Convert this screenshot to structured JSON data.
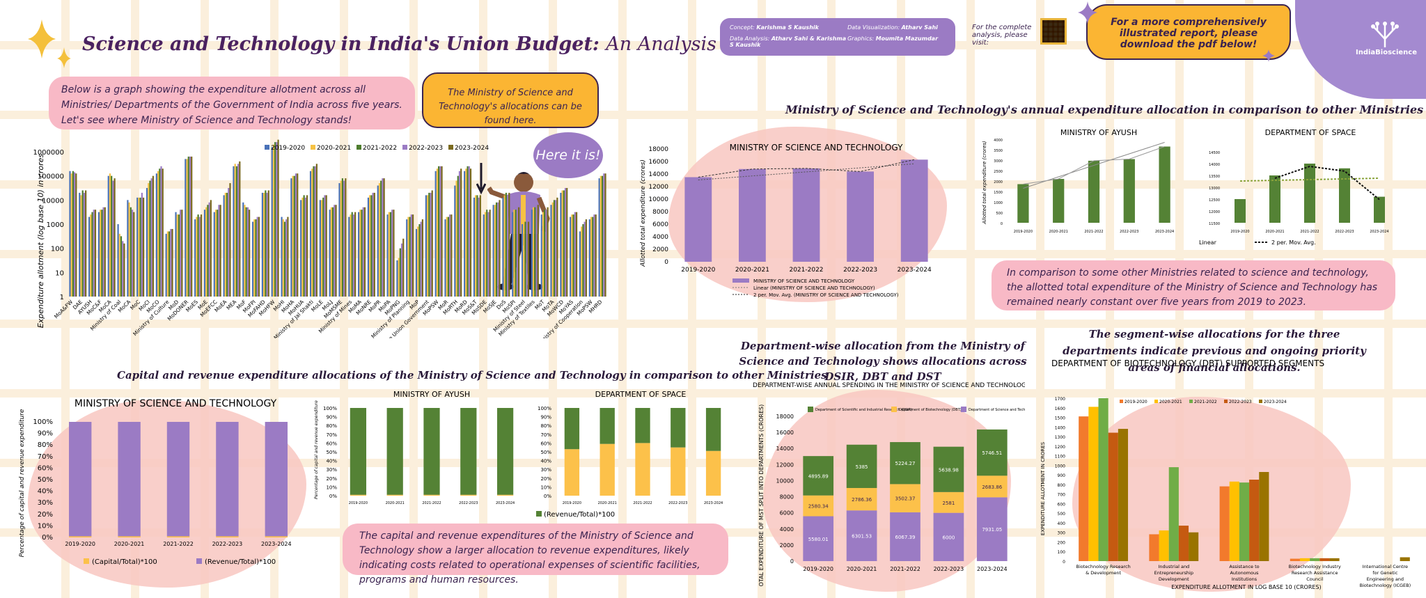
{
  "header": {
    "title_main": "Science and Technology in India's Union Budget:",
    "title_sub": "An Analysis across Five Years",
    "credits": [
      {
        "label": "Concept:",
        "value": "Karishma S Kaushik"
      },
      {
        "label": "Data Analysis:",
        "value": "Atharv Sahi & Karishma S Kaushik"
      },
      {
        "label": "Data Visualization:",
        "value": "Atharv Sahi"
      },
      {
        "label": "Graphics:",
        "value": "Moumita Mazumdar"
      }
    ],
    "analysis_text": "For the complete analysis, please visit:",
    "download_text": "For a more comprehensively illustrated report, please download the pdf below!",
    "logo_text": "IndiaBioscience"
  },
  "notes": {
    "intro": "Below is a graph showing the expenditure allotment across all Ministries/ Departments of the Government of India across five years. Let's see where Ministry of Science and Technology stands!",
    "mst_found": "The Ministry of Science and Technology's allocations can be found here.",
    "here": "Here it is!",
    "comparison": "In comparison to some other Ministries related to science and technology, the allotted total expenditure of the Ministry of Science and Technology has remained nearly constant over five years from 2019 to 2023.",
    "capital_revenue": "The capital and revenue expenditures of the Ministry of Science and Technology show a larger allocation to revenue expenditures, likely indicating costs related to operational expenses of scientific facilities, programs and human resources.",
    "dept_heading": "Department-wise allocation from the Ministry of Science and Technology shows allocations across DSIR, DBT and DST",
    "segment_heading": "The segment-wise allocations for the three departments indicate previous and ongoing priority areas of financial allocations."
  },
  "colors": {
    "y2019": "#4a72b8",
    "y2020": "#f6c244",
    "y2021": "#4e7d2e",
    "y2022": "#9b7bc4",
    "y2023": "#7a6a1e",
    "purple": "#9b7bc4",
    "green": "#548235",
    "yellow": "#fcc14a",
    "pink": "#f7b6c1",
    "orange": "#fbb033"
  },
  "chart_data": [
    {
      "type": "bar",
      "id": "all_ministries",
      "ylabel": "Expenditure allotment (log base 10) in crores",
      "yscale": "log",
      "ylim": [
        1,
        1000000
      ],
      "yticks": [
        "1",
        "10",
        "100",
        "1000",
        "10000",
        "100000",
        "1000000"
      ],
      "legend": [
        "2019-2020",
        "2020-2021",
        "2021-2022",
        "2022-2023",
        "2023-2024"
      ],
      "categories": [
        "MoA&FW",
        "DAE",
        "AYUSH",
        "MoC&F",
        "MoCA",
        "Ministry of Coal",
        "MoCA",
        "MoC",
        "MoCI",
        "MoCO",
        "Ministry of Culture",
        "MoD",
        "MoDONER",
        "MoES",
        "MoE",
        "MoEFCC",
        "MoEA",
        "MEA",
        "MoF",
        "MoFPI",
        "MoFAHD",
        "MoHFW",
        "MoHI",
        "MoHA",
        "MoHUA",
        "Ministry of Jal Shakti",
        "MoLE",
        "MoLJ",
        "MoMSME",
        "Ministry of Mines",
        "MoMA",
        "MoNRE",
        "MoPR",
        "MoPA",
        "MoPNG",
        "Ministry of Planning",
        "MoP",
        "The Union Government",
        "MoPSW",
        "MoR",
        "MoRTH",
        "MoRD",
        "MoS&T",
        "MoSDE",
        "MoSJE",
        "DoS",
        "MoSPI",
        "Ministry of Steel",
        "Ministry of Textiles",
        "MoT",
        "MoTA",
        "MoWCD",
        "MoYAS",
        "Ministry of Cooperation",
        "MoPSW",
        "MHRD"
      ],
      "series_log10": [
        [
          5.2,
          5.1,
          5.2,
          5.15,
          5.1
        ],
        [
          4.3,
          4.2,
          4.4,
          4.3,
          4.4
        ],
        [
          3.3,
          3.4,
          3.5,
          3.6,
          3.6
        ],
        [
          3.5,
          3.6,
          3.6,
          3.7,
          3.7
        ],
        [
          5.0,
          5.1,
          5.0,
          4.8,
          4.9
        ],
        [
          3.0,
          2.6,
          2.5,
          2.3,
          2.2
        ],
        [
          4.0,
          3.9,
          3.7,
          3.6,
          3.5
        ],
        [
          4.1,
          4.1,
          4.1,
          4.3,
          4.1
        ],
        [
          4.5,
          4.7,
          4.8,
          4.9,
          5.0
        ],
        [
          5.1,
          5.2,
          5.3,
          5.4,
          5.3
        ],
        [
          2.6,
          2.7,
          2.7,
          2.8,
          2.8
        ],
        [
          3.5,
          3.4,
          3.4,
          3.6,
          3.6
        ],
        [
          5.7,
          5.7,
          5.8,
          5.8,
          5.8
        ],
        [
          3.2,
          3.3,
          3.4,
          3.3,
          3.4
        ],
        [
          3.6,
          3.7,
          3.8,
          3.9,
          4.0
        ],
        [
          3.5,
          3.6,
          3.6,
          3.8,
          3.8
        ],
        [
          4.2,
          4.3,
          4.3,
          4.5,
          4.7
        ],
        [
          5.4,
          5.5,
          5.4,
          5.5,
          5.6
        ],
        [
          3.9,
          3.8,
          3.7,
          3.7,
          3.6
        ],
        [
          3.1,
          3.2,
          3.2,
          3.3,
          3.3
        ],
        [
          4.3,
          4.3,
          4.4,
          4.3,
          4.4
        ],
        [
          6.2,
          6.3,
          6.4,
          6.4,
          6.5
        ],
        [
          3.3,
          3.2,
          3.1,
          3.2,
          3.3
        ],
        [
          4.9,
          5.0,
          5.0,
          5.1,
          5.1
        ],
        [
          4.0,
          4.1,
          4.2,
          4.1,
          4.2
        ],
        [
          5.2,
          5.3,
          5.4,
          5.4,
          5.5
        ],
        [
          4.0,
          4.0,
          4.1,
          4.2,
          4.2
        ],
        [
          3.6,
          3.7,
          3.7,
          3.8,
          3.8
        ],
        [
          4.7,
          4.8,
          4.9,
          4.8,
          4.9
        ],
        [
          3.3,
          3.4,
          3.5,
          3.4,
          3.5
        ],
        [
          3.5,
          3.6,
          3.6,
          3.7,
          3.7
        ],
        [
          4.1,
          4.2,
          4.2,
          4.3,
          4.3
        ],
        [
          4.6,
          4.7,
          4.8,
          4.9,
          4.9
        ],
        [
          3.4,
          3.5,
          3.5,
          3.6,
          3.6
        ],
        [
          1.5,
          1.6,
          2.0,
          2.2,
          2.4
        ],
        [
          3.2,
          3.3,
          3.3,
          3.4,
          3.4
        ],
        [
          2.8,
          2.9,
          3.0,
          3.1,
          3.2
        ],
        [
          4.2,
          4.2,
          4.3,
          4.3,
          4.4
        ],
        [
          5.2,
          5.3,
          5.4,
          5.4,
          5.4
        ],
        [
          3.2,
          3.3,
          3.3,
          3.4,
          3.4
        ],
        [
          4.6,
          4.8,
          5.0,
          5.2,
          5.3
        ],
        [
          5.2,
          5.3,
          5.4,
          5.4,
          5.3
        ],
        [
          4.1,
          4.2,
          4.2,
          4.1,
          4.2
        ],
        [
          3.4,
          3.5,
          3.6,
          3.5,
          3.6
        ],
        [
          3.8,
          3.8,
          3.9,
          3.9,
          4.0
        ],
        [
          4.1,
          4.2,
          4.3,
          4.2,
          4.3
        ],
        [
          3.5,
          3.6,
          3.6,
          3.6,
          3.7
        ],
        [
          3.0,
          3.1,
          3.1,
          3.0,
          3.1
        ],
        [
          3.6,
          3.7,
          3.7,
          3.8,
          3.8
        ],
        [
          3.4,
          3.5,
          3.6,
          3.6,
          3.7
        ],
        [
          3.8,
          3.9,
          4.0,
          4.0,
          4.1
        ],
        [
          4.3,
          4.4,
          4.4,
          4.5,
          4.5
        ],
        [
          3.3,
          3.4,
          3.4,
          3.5,
          3.5
        ],
        [
          2.7,
          2.9,
          3.0,
          3.1,
          3.2
        ],
        [
          3.2,
          3.3,
          3.3,
          3.4,
          3.4
        ],
        [
          4.9,
          5.0,
          5.0,
          5.1,
          5.1
        ]
      ]
    },
    {
      "type": "bar",
      "id": "mst_total",
      "title": "MINISTRY OF SCIENCE AND TECHNOLOGY",
      "ylabel": "Allotted total expenditure (crores)",
      "categories": [
        "2019-2020",
        "2020-2021",
        "2021-2022",
        "2022-2023",
        "2023-2024"
      ],
      "values": [
        13500,
        14800,
        14900,
        14400,
        16300
      ],
      "ylim": [
        0,
        18000
      ],
      "yticks": [
        "0",
        "2000",
        "4000",
        "6000",
        "8000",
        "10000",
        "12000",
        "14000",
        "16000",
        "18000"
      ],
      "legend": [
        "MINISTRY OF SCIENCE AND TECHNOLOGY",
        "Linear (MINISTRY OF SCIENCE AND TECHNOLOGY)",
        "2 per. Mov. Avg. (MINISTRY OF SCIENCE AND TECHNOLOGY)"
      ]
    },
    {
      "type": "bar",
      "id": "ayush_total",
      "title": "MINISTRY OF AYUSH",
      "ylabel": "Allotted total expenditure (crores)",
      "categories": [
        "2019-2020",
        "2020-2021",
        "2021-2022",
        "2022-2023",
        "2023-2024"
      ],
      "values": [
        1850,
        2100,
        2970,
        3050,
        3650
      ],
      "ylim": [
        0,
        4000
      ],
      "yticks": [
        "0",
        "500",
        "1000",
        "1500",
        "2000",
        "2500",
        "3000",
        "3500",
        "4000"
      ]
    },
    {
      "type": "bar",
      "id": "space_total",
      "title": "DEPARTMENT OF SPACE",
      "categories": [
        "2019-2020",
        "2020-2021",
        "2021-2022",
        "2022-2023",
        "2023-2024"
      ],
      "values": [
        12500,
        13500,
        14000,
        13800,
        12600
      ],
      "ylim": [
        11500,
        14500
      ],
      "yticks": [
        "11500",
        "12000",
        "12500",
        "13000",
        "13500",
        "14000",
        "14500"
      ],
      "legend": [
        "Linear",
        "2 per. Mov. Avg."
      ]
    },
    {
      "type": "bar",
      "id": "mst_cap_rev",
      "title": "MINISTRY OF SCIENCE AND TECHNOLOGY",
      "ylabel": "Percentage of capital and revenue expenditure",
      "categories": [
        "2019-2020",
        "2020-2021",
        "2021-2022",
        "2022-2023",
        "2023-2024"
      ],
      "series": [
        {
          "name": "(Capital/Total)*100",
          "values": [
            1,
            1,
            1,
            1,
            1
          ]
        },
        {
          "name": "(Revenue/Total)*100",
          "values": [
            99,
            99,
            99,
            99,
            99
          ]
        }
      ],
      "yticks": [
        "0%",
        "10%",
        "20%",
        "30%",
        "40%",
        "50%",
        "60%",
        "70%",
        "80%",
        "90%",
        "100%"
      ]
    },
    {
      "type": "bar",
      "id": "ayush_cap_rev",
      "title": "MINISTRY OF AYUSH",
      "ylabel": "Percentage of capital and revenue expenditure",
      "categories": [
        "2019-2020",
        "2020-2021",
        "2021-2022",
        "2022-2023",
        "2023-2024"
      ],
      "series": [
        {
          "name": "(Capital/Total)*100",
          "values": [
            1,
            1,
            1,
            1,
            1
          ]
        },
        {
          "name": "(Revenue/Total)*100",
          "values": [
            99,
            99,
            99,
            99,
            99
          ]
        }
      ],
      "yticks": [
        "0%",
        "10%",
        "20%",
        "30%",
        "40%",
        "50%",
        "60%",
        "70%",
        "80%",
        "90%",
        "100%"
      ]
    },
    {
      "type": "bar",
      "id": "space_cap_rev",
      "title": "DEPARTMENT OF SPACE",
      "categories": [
        "2019-2020",
        "2020-2021",
        "2021-2022",
        "2022-2023",
        "2023-2024"
      ],
      "series": [
        {
          "name": "(Capital/Total)*100",
          "values": [
            53,
            59,
            60,
            55,
            51
          ]
        },
        {
          "name": "(Revenue/Total)*100",
          "values": [
            47,
            41,
            40,
            45,
            49
          ]
        }
      ],
      "legend": [
        "(Capital/Total)*100",
        "(Revenue/Total)*100"
      ],
      "yticks": [
        "0%",
        "10%",
        "20%",
        "30%",
        "40%",
        "50%",
        "60%",
        "70%",
        "80%",
        "90%",
        "100%"
      ]
    },
    {
      "type": "bar",
      "id": "dept_wise",
      "title": "DEPARTMENT-WISE ANNUAL SPENDING IN THE  MINISTRY OF SCIENCE AND TECHNOLOGY",
      "ylabel": "TOTAL EXPENDITURE OF MST SPLIT INTO DEPARTMENTS (CRORES)",
      "categories": [
        "2019-2020",
        "2020-2021",
        "2021-2022",
        "2022-2023",
        "2023-2024"
      ],
      "ylim": [
        0,
        18000
      ],
      "yticks": [
        "0",
        "2000",
        "4000",
        "6000",
        "8000",
        "10000",
        "12000",
        "14000",
        "16000",
        "18000"
      ],
      "series": [
        {
          "name": "Department of Science and Technology (DST)",
          "values": [
            5580.01,
            6301.53,
            6067.39,
            6000,
            7931.05
          ],
          "labels": [
            "5580.01",
            "6301.53",
            "6067.39",
            "6000",
            "7931.05"
          ]
        },
        {
          "name": "Department of Biotechnology (DBT)",
          "values": [
            2580.34,
            2786.36,
            3502.37,
            2581,
            2683.86
          ],
          "labels": [
            "2580.34",
            "2786.36",
            "3502.37",
            "2581",
            "2683.86"
          ]
        },
        {
          "name": "Department of Scientific and Industrial Research (DSIR)",
          "values": [
            4895.89,
            5385,
            5224.27,
            5638.98,
            5746.51
          ],
          "labels": [
            "4895.89",
            "5385",
            "5224.27",
            "5638.98",
            "5746.51"
          ]
        }
      ]
    },
    {
      "type": "bar",
      "id": "dbt_segments",
      "title": "DEPARTMENT OF BIOTECHNOLOGY (DBT) SUPPORTED SEGMENTS",
      "ylabel": "EXPENDITURE ALLOTMENT IN CRORES",
      "xlabel": "EXPENDITURE ALLOTMENT IN LOG BASE 10 (CRORES)",
      "categories": [
        "Biotechnology Research & Development",
        "Industrial and Entrepreneurship Development",
        "Assistance to Autonomous Institutions",
        "Biotechnology Industry Research Assistance Council",
        "International Centre for Genetic Engineering and Biotechnology (ICGEB)"
      ],
      "ylim": [
        0,
        1700
      ],
      "yticks": [
        "0",
        "100",
        "200",
        "300",
        "400",
        "500",
        "600",
        "700",
        "800",
        "900",
        "1000",
        "1100",
        "1200",
        "1300",
        "1400",
        "1500",
        "1600",
        "1700"
      ],
      "series": [
        {
          "name": "2019-2020",
          "values": [
            1510,
            280,
            780,
            25,
            0
          ]
        },
        {
          "name": "2020-2021",
          "values": [
            1610,
            320,
            830,
            30,
            0
          ]
        },
        {
          "name": "2021-2022",
          "values": [
            1700,
            980,
            820,
            30,
            0
          ]
        },
        {
          "name": "2022-2023",
          "values": [
            1340,
            370,
            850,
            30,
            0
          ]
        },
        {
          "name": "2023-2024",
          "values": [
            1380,
            300,
            930,
            30,
            40
          ]
        }
      ]
    }
  ]
}
